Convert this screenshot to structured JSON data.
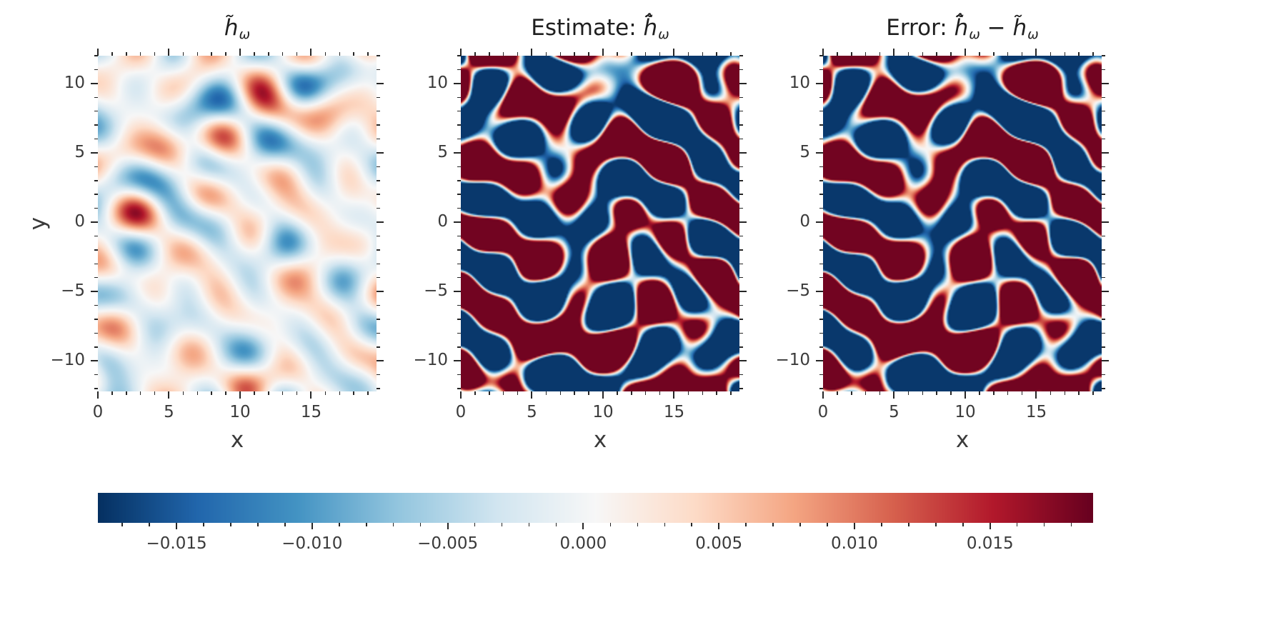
{
  "figure": {
    "background": "#ffffff",
    "text_color": "#3a3a3a",
    "tick_color": "#262626",
    "title_color": "#1f1f1f"
  },
  "chart_data": {
    "type": "heatmap",
    "layout": "three heatmap panels sharing x/y axes, with one shared horizontal colorbar below",
    "colormap": {
      "name": "RdBu_r",
      "anchors": [
        "#053061",
        "#2166ac",
        "#4393c3",
        "#92c5de",
        "#d1e5f0",
        "#f7f7f7",
        "#fddbc7",
        "#f4a582",
        "#d6604d",
        "#b2182b",
        "#67001f"
      ]
    },
    "vmin": -0.0179,
    "vmax": 0.0188,
    "x": {
      "label": "x",
      "range": [
        0,
        19.6
      ],
      "major_ticks": [
        0,
        5,
        10,
        15
      ],
      "minor_step": 1
    },
    "y": {
      "label": "y",
      "range": [
        -12.2,
        12.0
      ],
      "major_ticks": [
        -10,
        -5,
        0,
        5,
        10
      ],
      "minor_step": 1
    },
    "colorbar": {
      "orientation": "horizontal",
      "ticks": [
        -0.015,
        -0.01,
        -0.005,
        0.0,
        0.005,
        0.01,
        0.015
      ],
      "tick_labels": [
        "−0.015",
        "−0.010",
        "−0.005",
        "0.000",
        "0.005",
        "0.010",
        "0.015"
      ],
      "minor_step": 0.001
    },
    "panels": [
      {
        "id": "true-field",
        "title_segments": [
          {
            "t": "h̃",
            "italic": true
          },
          {
            "t": "ω",
            "italic": true,
            "sub": true
          }
        ],
        "render": "smooth",
        "procedural_field": {
          "seed": 101,
          "n_modes": 42,
          "k_range": [
            0.85,
            1.75
          ],
          "amplitude": 0.0165
        }
      },
      {
        "id": "estimate",
        "title_segments": [
          {
            "t": "Estimate: "
          },
          {
            "t": "h̃̂",
            "italic": true
          },
          {
            "t": "ω",
            "italic": true,
            "sub": true
          }
        ],
        "render": "saturated",
        "procedural_field": {
          "seed": 202,
          "n_modes": 42,
          "k_range": [
            0.85,
            1.75
          ],
          "amplitude": 0.19
        }
      },
      {
        "id": "error",
        "title_segments": [
          {
            "t": "Error: "
          },
          {
            "t": "h̃̂",
            "italic": true
          },
          {
            "t": "ω",
            "italic": true,
            "sub": true
          },
          {
            "t": " − "
          },
          {
            "t": "h̃",
            "italic": true
          },
          {
            "t": "ω",
            "italic": true,
            "sub": true
          }
        ],
        "render": "saturated-diff",
        "procedural_field": {
          "seed": 202,
          "n_modes": 42,
          "k_range": [
            0.85,
            1.75
          ],
          "amplitude": 0.19
        }
      }
    ]
  }
}
